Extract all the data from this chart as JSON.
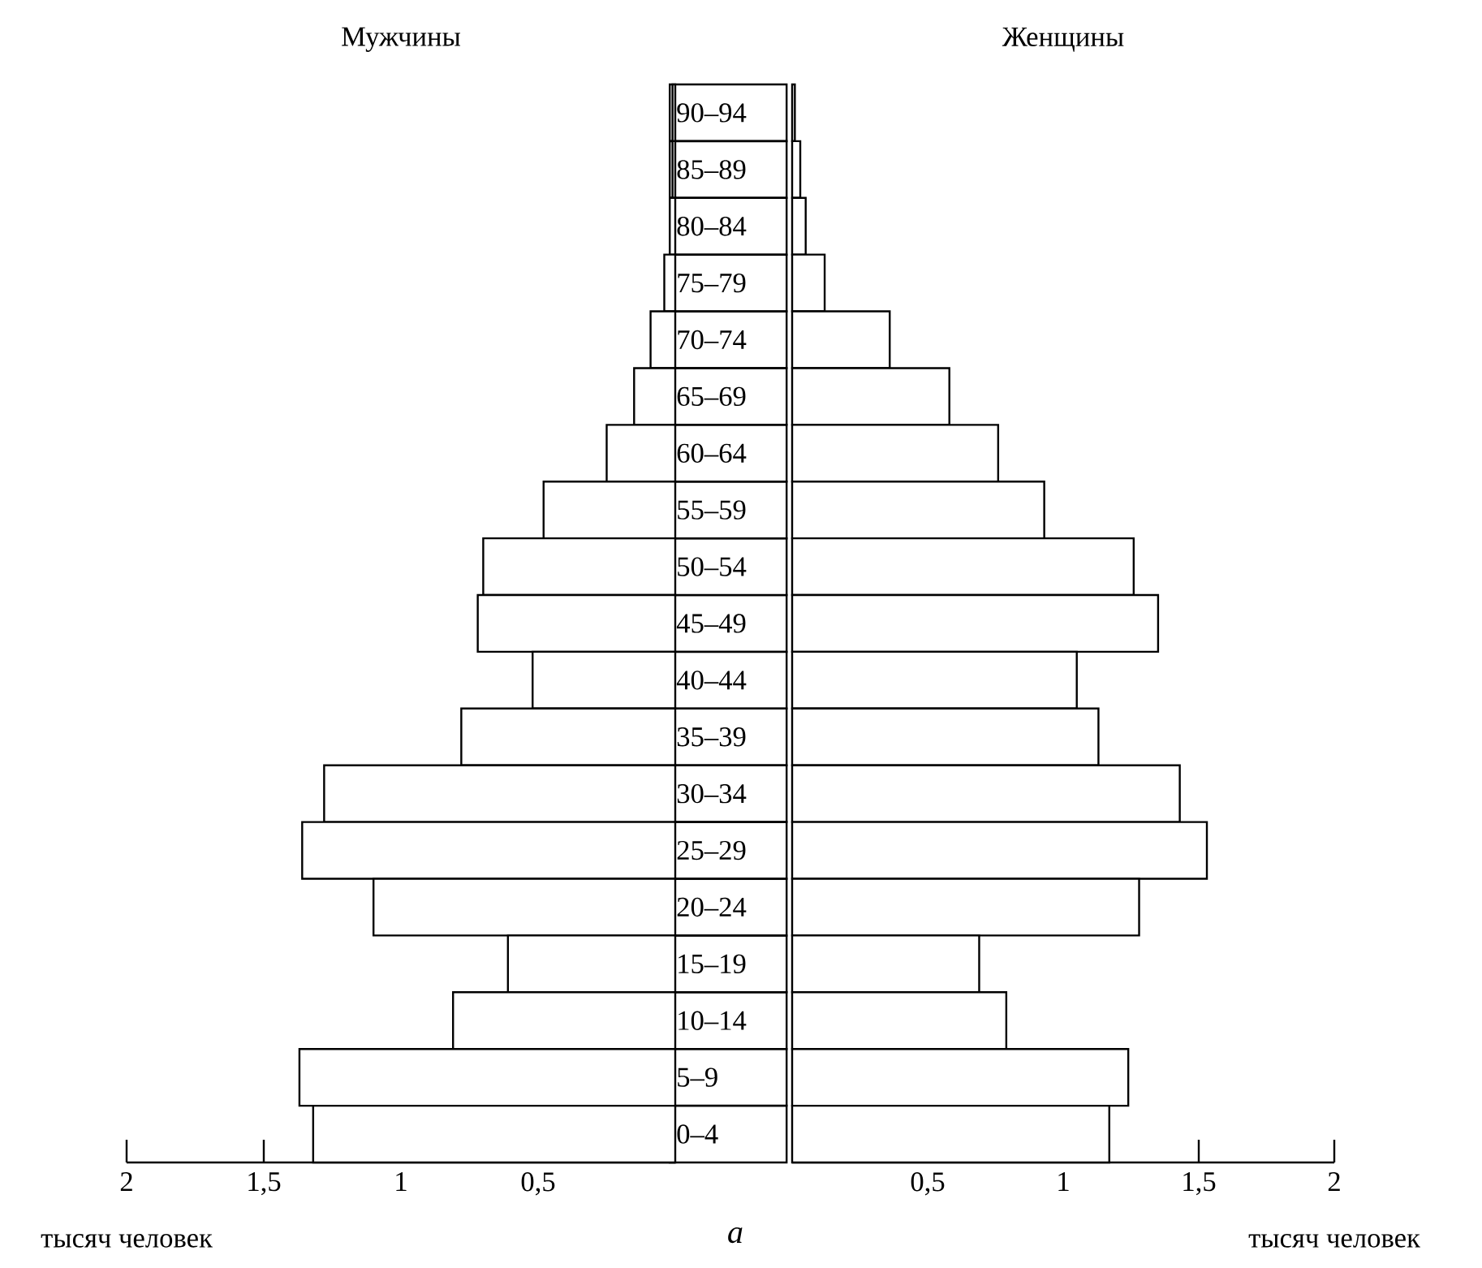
{
  "chart_data": [
    {
      "type": "bar",
      "orientation": "horizontal",
      "title": "Мужчины",
      "categories": [
        "90–94",
        "85–89",
        "80–84",
        "75–79",
        "70–74",
        "65–69",
        "60–64",
        "55–59",
        "50–54",
        "45–49",
        "40–44",
        "35–39",
        "30–34",
        "25–29",
        "20–24",
        "15–19",
        "10–14",
        "5–9",
        "0–4"
      ],
      "values": [
        0.01,
        0.01,
        0.02,
        0.04,
        0.09,
        0.15,
        0.25,
        0.48,
        0.7,
        0.72,
        0.52,
        0.78,
        1.28,
        1.36,
        1.1,
        0.61,
        0.81,
        1.37,
        1.32
      ],
      "color": "#ffffff",
      "xlim": [
        2,
        0
      ],
      "xticks": [
        {
          "value": 2,
          "label": "2"
        },
        {
          "value": 1.5,
          "label": "1,5"
        },
        {
          "value": 1,
          "label": "1"
        },
        {
          "value": 0.5,
          "label": "0,5"
        }
      ],
      "annotations": [
        "тысяч человек",
        "а"
      ]
    },
    {
      "type": "bar",
      "orientation": "horizontal",
      "title": "Женщины",
      "categories": [
        null,
        null,
        null,
        null,
        null,
        null,
        null,
        null,
        null,
        null,
        null,
        null,
        null,
        null,
        null,
        null,
        null,
        null,
        null
      ],
      "values": [
        0.01,
        0.03,
        0.05,
        0.12,
        0.36,
        0.58,
        0.76,
        0.93,
        1.26,
        1.35,
        1.05,
        1.13,
        1.43,
        1.53,
        1.28,
        0.69,
        0.79,
        1.24,
        1.17
      ],
      "color": "#ffffff",
      "xlim": [
        0,
        2
      ],
      "xticks": [
        {
          "value": 0.5,
          "label": "0,5"
        },
        {
          "value": 1,
          "label": "1"
        },
        {
          "value": 1.5,
          "label": "1,5"
        },
        {
          "value": 2,
          "label": "2"
        }
      ],
      "tick_labels": "x",
      "annotations": [
        "тысяч человек"
      ]
    }
  ]
}
